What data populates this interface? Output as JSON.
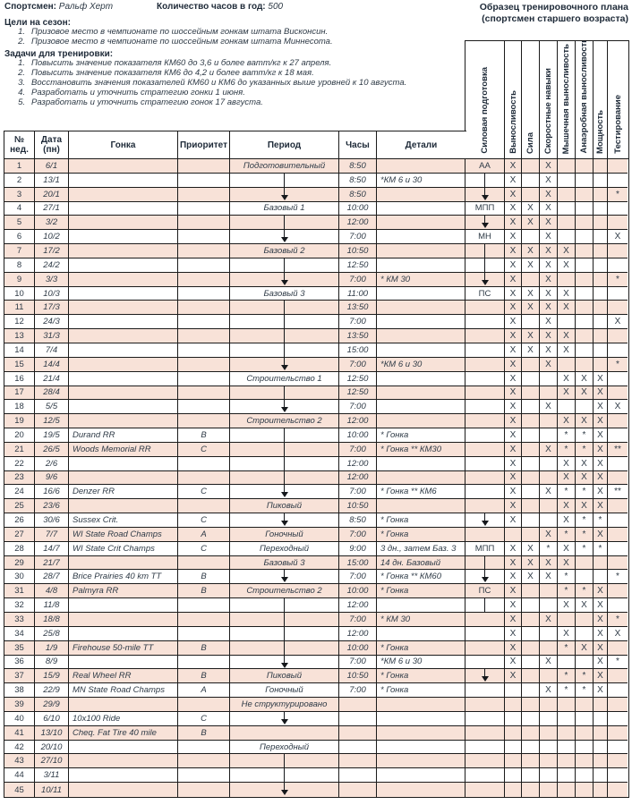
{
  "page": {
    "athlete_label": "Спортсмен:",
    "athlete_value": "Ральф Херт",
    "hours_label": "Количество часов в год:",
    "hours_value": "500",
    "title_line1": "Образец тренировочного плана",
    "title_line2": "(спортсмен старшего возраста)",
    "goals_heading": "Цели на сезон:",
    "goals": [
      "Призовое место в чемпионате по шоссейным гонкам штата Висконсин.",
      "Призовое место в чемпионате по шоссейным гонкам штата Миннесота."
    ],
    "objectives_heading": "Задачи для тренировки:",
    "objectives": [
      "Повысить значение показателя КМ60 до 3,6 и более ватт/кг к 27 апреля.",
      "Повысить значение показателя КМ6 до 4,2 и более ватт/кг к 18 мая.",
      "Восстановить значения показателей КМ60 и КМ6 до указанных выше уровней к 10 августа.",
      "Разработать и уточнить стратегию гонки 1 июня.",
      "Разработать и уточнить стратегию гонок 17 августа."
    ]
  },
  "colors": {
    "row_pink": "#f8e2d8",
    "text": "#2e3a46",
    "border": "#1b1b1b"
  },
  "table": {
    "columns": [
      "№\nнед.",
      "Дата\n(пн)",
      "Гонка",
      "Приоритет",
      "Период",
      "Часы",
      "Детали"
    ],
    "rotated_columns": [
      "Силовая подготовка",
      "Выносливость",
      "Сила",
      "Скоростные навыки",
      "Мышечная выносливость",
      "Анаэробная выносливость",
      "Мощность",
      "Тестирование"
    ],
    "rows": [
      {
        "n": "1",
        "d": "6/1",
        "per": "Подготовительный",
        "h": "8:50",
        "sp": "АА",
        "m": [
          "X",
          "",
          "X",
          "",
          "",
          "",
          ""
        ]
      },
      {
        "n": "2",
        "d": "13/1",
        "perM": "line",
        "h": "8:50",
        "det": "*КМ 6 и 30",
        "spM": "line",
        "m": [
          "X",
          "",
          "X",
          "",
          "",
          "",
          ""
        ]
      },
      {
        "n": "3",
        "d": "20/1",
        "perM": "arrow",
        "h": "8:50",
        "spM": "arrow",
        "m": [
          "X",
          "",
          "X",
          "",
          "",
          "",
          "*"
        ]
      },
      {
        "n": "4",
        "d": "27/1",
        "per": "Базовый 1",
        "h": "10:00",
        "sp": "МПП",
        "m": [
          "X",
          "X",
          "X",
          "",
          "",
          "",
          ""
        ]
      },
      {
        "n": "5",
        "d": "3/2",
        "perM": "line",
        "h": "12:00",
        "spM": "arrow",
        "m": [
          "X",
          "X",
          "X",
          "",
          "",
          "",
          ""
        ]
      },
      {
        "n": "6",
        "d": "10/2",
        "perM": "arrow",
        "h": "7:00",
        "sp": "МН",
        "m": [
          "X",
          "",
          "X",
          "",
          "",
          "",
          "X"
        ]
      },
      {
        "n": "7",
        "d": "17/2",
        "per": "Базовый 2",
        "h": "10:50",
        "spM": "line",
        "m": [
          "X",
          "X",
          "X",
          "X",
          "",
          "",
          ""
        ]
      },
      {
        "n": "8",
        "d": "24/2",
        "perM": "line",
        "h": "12:50",
        "spM": "line",
        "m": [
          "X",
          "X",
          "X",
          "X",
          "",
          "",
          ""
        ]
      },
      {
        "n": "9",
        "d": "3/3",
        "perM": "arrow",
        "h": "7:00",
        "det": "* КМ 30",
        "spM": "arrow",
        "m": [
          "X",
          "",
          "X",
          "",
          "",
          "",
          "*"
        ]
      },
      {
        "n": "10",
        "d": "10/3",
        "per": "Базовый 3",
        "h": "11:00",
        "sp": "ПС",
        "m": [
          "X",
          "X",
          "X",
          "X",
          "",
          "",
          ""
        ]
      },
      {
        "n": "11",
        "d": "17/3",
        "perM": "line",
        "h": "13:50",
        "m": [
          "X",
          "X",
          "X",
          "X",
          "",
          "",
          ""
        ]
      },
      {
        "n": "12",
        "d": "24/3",
        "perM": "line",
        "h": "7:00",
        "m": [
          "X",
          "",
          "X",
          "",
          "",
          "",
          "X"
        ]
      },
      {
        "n": "13",
        "d": "31/3",
        "perM": "line",
        "h": "13:50",
        "m": [
          "X",
          "X",
          "X",
          "X",
          "",
          "",
          ""
        ]
      },
      {
        "n": "14",
        "d": "7/4",
        "perM": "line",
        "h": "15:00",
        "m": [
          "X",
          "X",
          "X",
          "X",
          "",
          "",
          ""
        ]
      },
      {
        "n": "15",
        "d": "14/4",
        "perM": "arrow",
        "h": "7:00",
        "det": "*КМ 6 и 30",
        "m": [
          "X",
          "",
          "X",
          "",
          "",
          "",
          "*"
        ]
      },
      {
        "n": "16",
        "d": "21/4",
        "per": "Строительство 1",
        "h": "12:50",
        "m": [
          "X",
          "",
          "",
          "X",
          "X",
          "X",
          ""
        ]
      },
      {
        "n": "17",
        "d": "28/4",
        "perM": "line",
        "h": "12:50",
        "m": [
          "X",
          "",
          "",
          "X",
          "X",
          "X",
          ""
        ]
      },
      {
        "n": "18",
        "d": "5/5",
        "perM": "arrow",
        "h": "7:00",
        "m": [
          "X",
          "",
          "X",
          "",
          "",
          "X",
          "X"
        ]
      },
      {
        "n": "19",
        "d": "12/5",
        "per": "Строительство 2",
        "h": "12:00",
        "m": [
          "X",
          "",
          "",
          "X",
          "X",
          "X",
          ""
        ]
      },
      {
        "n": "20",
        "d": "19/5",
        "r": "Durand RR",
        "p": "B",
        "perM": "line",
        "h": "10:00",
        "det": "* Гонка",
        "m": [
          "X",
          "",
          "",
          "*",
          "*",
          "X",
          ""
        ]
      },
      {
        "n": "21",
        "d": "26/5",
        "r": "Woods Memorial RR",
        "p": "C",
        "perM": "line",
        "h": "7:00",
        "det": "* Гонка ** КМ30",
        "m": [
          "X",
          "",
          "X",
          "*",
          "*",
          "X",
          "**"
        ]
      },
      {
        "n": "22",
        "d": "2/6",
        "perM": "line",
        "h": "12:00",
        "m": [
          "X",
          "",
          "",
          "X",
          "X",
          "X",
          ""
        ]
      },
      {
        "n": "23",
        "d": "9/6",
        "perM": "line",
        "h": "12:00",
        "m": [
          "X",
          "",
          "",
          "X",
          "X",
          "X",
          ""
        ]
      },
      {
        "n": "24",
        "d": "16/6",
        "r": "Denzer RR",
        "p": "C",
        "perM": "arrow",
        "h": "7:00",
        "det": "* Гонка ** КМ6",
        "m": [
          "X",
          "",
          "X",
          "*",
          "*",
          "X",
          "**"
        ]
      },
      {
        "n": "25",
        "d": "23/6",
        "per": "Пиковый",
        "h": "10:50",
        "m": [
          "X",
          "",
          "",
          "X",
          "X",
          "X",
          ""
        ]
      },
      {
        "n": "26",
        "d": "30/6",
        "r": "Sussex Crit.",
        "p": "C",
        "perM": "arrow",
        "h": "8:50",
        "det": "* Гонка",
        "spM": "arrow",
        "m": [
          "X",
          "",
          "",
          "X",
          "*",
          "*",
          ""
        ]
      },
      {
        "n": "27",
        "d": "7/7",
        "r": "WI State Road Champs",
        "p": "A",
        "per": "Гоночный",
        "h": "7:00",
        "det": "* Гонка",
        "m": [
          "",
          "",
          "X",
          "*",
          "*",
          "X",
          ""
        ]
      },
      {
        "n": "28",
        "d": "14/7",
        "r": "WI State Crit Champs",
        "p": "C",
        "per": "Переходный",
        "h": "9:00",
        "det": "3 дн., затем Баз. 3",
        "sp": "МПП",
        "m": [
          "X",
          "X",
          "*",
          "X",
          "*",
          "*",
          ""
        ]
      },
      {
        "n": "29",
        "d": "21/7",
        "per": "Базовый 3",
        "h": "15:00",
        "det": "14 дн. Базовый",
        "spM": "line",
        "m": [
          "X",
          "X",
          "X",
          "X",
          "",
          "",
          ""
        ]
      },
      {
        "n": "30",
        "d": "28/7",
        "r": "Brice Prairies 40 km TT",
        "p": "B",
        "perM": "arrow",
        "h": "7:00",
        "det": "* Гонка ** КМ60",
        "spM": "arrow",
        "m": [
          "X",
          "X",
          "X",
          "*",
          "",
          "",
          "*"
        ]
      },
      {
        "n": "31",
        "d": "4/8",
        "r": "Palmyra RR",
        "p": "B",
        "per": "Строительство 2",
        "h": "10:00",
        "det": "* Гонка",
        "sp": "ПС",
        "m": [
          "X",
          "",
          "",
          "*",
          "*",
          "X",
          ""
        ]
      },
      {
        "n": "32",
        "d": "11/8",
        "perM": "line",
        "h": "12:00",
        "spM": "line",
        "m": [
          "X",
          "",
          "",
          "X",
          "X",
          "X",
          ""
        ]
      },
      {
        "n": "33",
        "d": "18/8",
        "perM": "line",
        "h": "7:00",
        "det": "* КМ 30",
        "m": [
          "X",
          "",
          "X",
          "",
          "",
          "X",
          "*"
        ]
      },
      {
        "n": "34",
        "d": "25/8",
        "perM": "line",
        "h": "12:00",
        "m": [
          "X",
          "",
          "",
          "X",
          "",
          "X",
          "X"
        ]
      },
      {
        "n": "35",
        "d": "1/9",
        "r": "Firehouse 50-mile TT",
        "p": "B",
        "perM": "line",
        "h": "10:00",
        "det": "* Гонка",
        "m": [
          "X",
          "",
          "",
          "*",
          "X",
          "X",
          ""
        ]
      },
      {
        "n": "36",
        "d": "8/9",
        "perM": "arrow",
        "h": "7:00",
        "det": "*КМ 6 и 30",
        "m": [
          "X",
          "",
          "X",
          "",
          "",
          "X",
          "*"
        ]
      },
      {
        "n": "37",
        "d": "15/9",
        "r": "Real Wheel RR",
        "p": "B",
        "per": "Пиковый",
        "h": "10:50",
        "det": "* Гонка",
        "spM": "arrow",
        "m": [
          "X",
          "",
          "",
          "*",
          "*",
          "X",
          ""
        ]
      },
      {
        "n": "38",
        "d": "22/9",
        "r": "MN State Road Champs",
        "p": "A",
        "per": "Гоночный",
        "h": "7:00",
        "det": "* Гонка",
        "m": [
          "",
          "",
          "X",
          "*",
          "*",
          "X",
          ""
        ]
      },
      {
        "n": "39",
        "d": "29/9",
        "per": "Не структурировано"
      },
      {
        "n": "40",
        "d": "6/10",
        "r": "10x100 Ride",
        "p": "C",
        "perM": "arrow"
      },
      {
        "n": "41",
        "d": "13/10",
        "r": "Cheq. Fat Tire 40 mile",
        "p": "B"
      },
      {
        "n": "42",
        "d": "20/10",
        "per": "Переходный"
      },
      {
        "n": "43",
        "d": "27/10",
        "perM": "line"
      },
      {
        "n": "44",
        "d": "3/11",
        "perM": "line"
      },
      {
        "n": "45",
        "d": "10/11",
        "perM": "arrow"
      }
    ]
  }
}
